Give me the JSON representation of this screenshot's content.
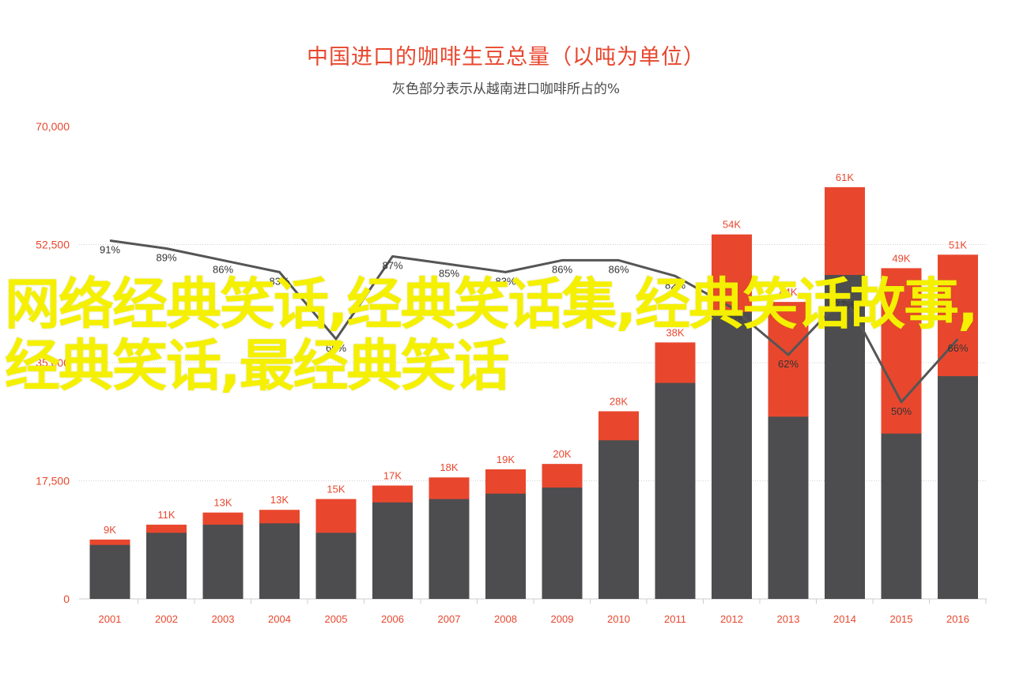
{
  "chart_data": {
    "type": "bar",
    "title": "中国进口的咖啡生豆总量（以吨为单位）",
    "subtitle": "灰色部分表示从越南进口咖啡所占的%",
    "categories": [
      "2001",
      "2002",
      "2003",
      "2004",
      "2005",
      "2006",
      "2007",
      "2008",
      "2009",
      "2010",
      "2011",
      "2012",
      "2013",
      "2014",
      "2015",
      "2016"
    ],
    "series": [
      {
        "values": [
          8800,
          11000,
          12800,
          13200,
          14800,
          16800,
          18000,
          19200,
          20000,
          27800,
          38000,
          54000,
          44000,
          61000,
          49000,
          51000
        ],
        "labels": [
          "9K",
          "11K",
          "13K",
          "13K",
          "15K",
          "17K",
          "18K",
          "19K",
          "20K",
          "28K",
          "38K",
          "54K",
          "44K",
          "61K",
          "49K",
          "51K"
        ]
      },
      {
        "values": [
          8000,
          9800,
          11000,
          11200,
          9800,
          14300,
          14800,
          15600,
          16500,
          23500,
          32000,
          42500,
          27000,
          48000,
          24500,
          33000
        ]
      },
      {
        "values": [
          91,
          89,
          86,
          83,
          66,
          87,
          85,
          83,
          86,
          86,
          82,
          74,
          62,
          77,
          50,
          66
        ],
        "labels": [
          "91%",
          "89%",
          "86%",
          "83%",
          "66%",
          "87%",
          "85%",
          "83%",
          "86%",
          "86%",
          "82%",
          "74%",
          "62%",
          "77%",
          "50%",
          "66%"
        ]
      }
    ],
    "y_ticks": [
      "70,000",
      "52,500",
      "35,000",
      "17,500",
      "0"
    ],
    "ylim": [
      0,
      70000
    ],
    "pct_ylim": [
      0,
      120
    ],
    "grid": false,
    "colors": {
      "total": "#e8472e",
      "vietnam": "#4d4d4f",
      "line": "#555555",
      "title": "#e8472e"
    }
  },
  "watermark": "网络经典笑话,经典笑话集,经典笑话故事,经典笑话,最经典笑话"
}
